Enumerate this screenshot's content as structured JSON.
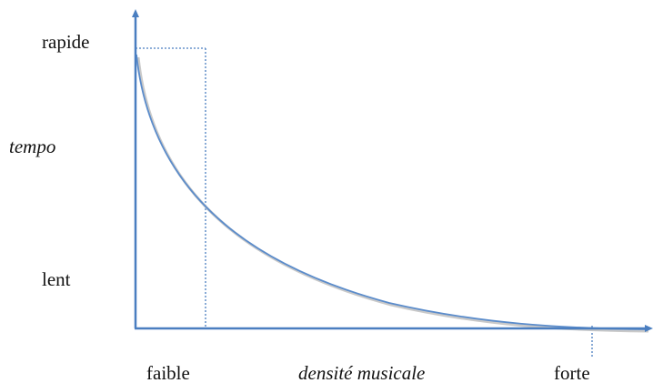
{
  "colors": {
    "axis": "#4a7ec0",
    "curve": "#5b8ccb",
    "curve_shadow": "#c9c9c9",
    "guide": "#4a7ec0",
    "text": "#111111"
  },
  "y_axis": {
    "title": "tempo",
    "tick_top": "rapide",
    "tick_bottom": "lent"
  },
  "x_axis": {
    "title": "densité musicale",
    "tick_left": "faible",
    "tick_right": "forte"
  },
  "curve": {
    "shape": "decaying",
    "style": "solid"
  },
  "guides": {
    "style": "dotted",
    "description_visible": false
  }
}
